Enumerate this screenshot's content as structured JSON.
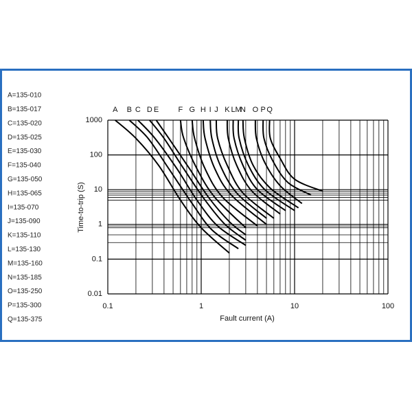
{
  "chart_data": {
    "type": "line",
    "x_label": "Fault current (A)",
    "y_label": "Time-to-trip (S)",
    "log_x": true,
    "log_y": true,
    "grid": true,
    "color": "#000000",
    "xlim": [
      0.1,
      100
    ],
    "xticks": [
      0.1,
      1,
      10,
      100
    ],
    "xminor_ticks": [
      0.2,
      0.3,
      0.4,
      0.5,
      0.6,
      0.7,
      0.8,
      0.9,
      2,
      3,
      4,
      5,
      6,
      7,
      8,
      9,
      20,
      30,
      40,
      50,
      60,
      70,
      80,
      90
    ],
    "ylim": [
      0.01,
      1000
    ],
    "yticks": [
      0.01,
      0.1,
      1,
      10,
      100,
      1000
    ],
    "yminor_ticks": [
      9,
      8,
      7,
      6,
      5,
      0.9,
      0.8,
      0.5,
      0.3
    ],
    "series": [
      {
        "name": "A=135-010",
        "label": "A",
        "x": [
          0.12,
          0.2,
          0.35,
          0.6,
          1,
          2
        ],
        "values": [
          1000,
          300,
          50,
          5,
          0.8,
          0.15
        ]
      },
      {
        "name": "B=135-017",
        "label": "B",
        "x": [
          0.17,
          0.27,
          0.45,
          0.8,
          1.3,
          2.5
        ],
        "values": [
          1000,
          300,
          40,
          4,
          0.7,
          0.2
        ]
      },
      {
        "name": "C=135-020",
        "label": "C",
        "x": [
          0.21,
          0.32,
          0.55,
          0.9,
          1.5,
          3
        ],
        "values": [
          1000,
          300,
          40,
          5,
          0.9,
          0.25
        ]
      },
      {
        "name": "D=135-025",
        "label": "D",
        "x": [
          0.28,
          0.4,
          0.65,
          1.1,
          1.8,
          3
        ],
        "values": [
          1000,
          300,
          40,
          5,
          1,
          0.35
        ]
      },
      {
        "name": "E=135-030",
        "label": "E",
        "x": [
          0.33,
          0.45,
          0.75,
          1.2,
          2,
          3
        ],
        "values": [
          1000,
          300,
          40,
          6,
          1.2,
          0.5
        ]
      },
      {
        "name": "F=135-040",
        "label": "F",
        "x": [
          0.6,
          0.65,
          0.9,
          1.4,
          3
        ],
        "values": [
          1000,
          300,
          40,
          6,
          0.8
        ]
      },
      {
        "name": "G=135-050",
        "label": "G",
        "x": [
          0.8,
          0.85,
          1.1,
          1.7,
          4
        ],
        "values": [
          1000,
          300,
          40,
          6,
          0.9
        ]
      },
      {
        "name": "H=135-065",
        "label": "H",
        "x": [
          1.05,
          1.1,
          1.4,
          2.1,
          5
        ],
        "values": [
          1000,
          300,
          40,
          7,
          1
        ]
      },
      {
        "name": "I=135-070",
        "label": "I",
        "x": [
          1.25,
          1.3,
          1.6,
          2.4,
          5
        ],
        "values": [
          1000,
          300,
          50,
          8,
          1.5
        ]
      },
      {
        "name": "J=135-090",
        "label": "J",
        "x": [
          1.45,
          1.5,
          1.9,
          2.8,
          6
        ],
        "values": [
          1000,
          300,
          50,
          8,
          1.5
        ]
      },
      {
        "name": "K=135-110",
        "label": "K",
        "x": [
          1.9,
          1.95,
          2.4,
          3.5,
          7
        ],
        "values": [
          1000,
          300,
          50,
          9,
          2
        ]
      },
      {
        "name": "L=135-130",
        "label": "L",
        "x": [
          2.2,
          2.25,
          2.8,
          4,
          8
        ],
        "values": [
          1000,
          300,
          50,
          10,
          2.5
        ]
      },
      {
        "name": "M=135-160",
        "label": "M",
        "x": [
          2.5,
          2.55,
          3.2,
          4.8,
          10
        ],
        "values": [
          1000,
          300,
          50,
          10,
          2.5
        ]
      },
      {
        "name": "N=135-185",
        "label": "N",
        "x": [
          2.8,
          2.9,
          3.6,
          5.5,
          11
        ],
        "values": [
          1000,
          300,
          50,
          11,
          3
        ]
      },
      {
        "name": "O=135-250",
        "label": "O",
        "x": [
          3.8,
          3.9,
          4.8,
          7,
          12
        ],
        "values": [
          1000,
          300,
          60,
          13,
          4
        ]
      },
      {
        "name": "P=135-300",
        "label": "P",
        "x": [
          4.6,
          4.7,
          5.8,
          8.5,
          15
        ],
        "values": [
          1000,
          300,
          70,
          16,
          7
        ]
      },
      {
        "name": "Q=135-375",
        "label": "Q",
        "x": [
          5.4,
          5.5,
          7,
          10,
          20
        ],
        "values": [
          1000,
          300,
          80,
          20,
          9
        ]
      }
    ]
  }
}
